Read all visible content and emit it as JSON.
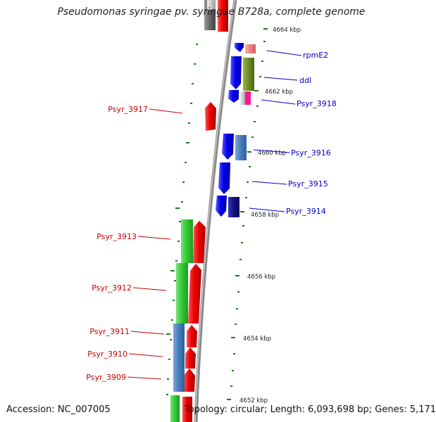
{
  "title": "Pseudomonas syringae pv. syringae B728a, complete genome",
  "footer": {
    "accession": "Accession: NC_007005",
    "topology": "Topology: circular; Length: 6,093,698 bp; Genes: 5,171"
  },
  "colors": {
    "forward_label": "#0000cc",
    "reverse_label": "#cc0000",
    "backbone": "#8a8a8a",
    "tick": "#1a7a1a"
  },
  "ticks": [
    "4664 kbp",
    "4662 kbp",
    "4660 kbp",
    "4658 kbp",
    "4656 kbp",
    "4654 kbp",
    "4652 kbp"
  ],
  "forward_labels": [
    "rpmE2",
    "ddl",
    "Psyr_3918",
    "Psyr_3916",
    "Psyr_3915",
    "Psyr_3914"
  ],
  "reverse_labels": [
    "Psyr_3917",
    "Psyr_3913",
    "Psyr_3912",
    "Psyr_3911",
    "Psyr_3910",
    "Psyr_3909"
  ]
}
